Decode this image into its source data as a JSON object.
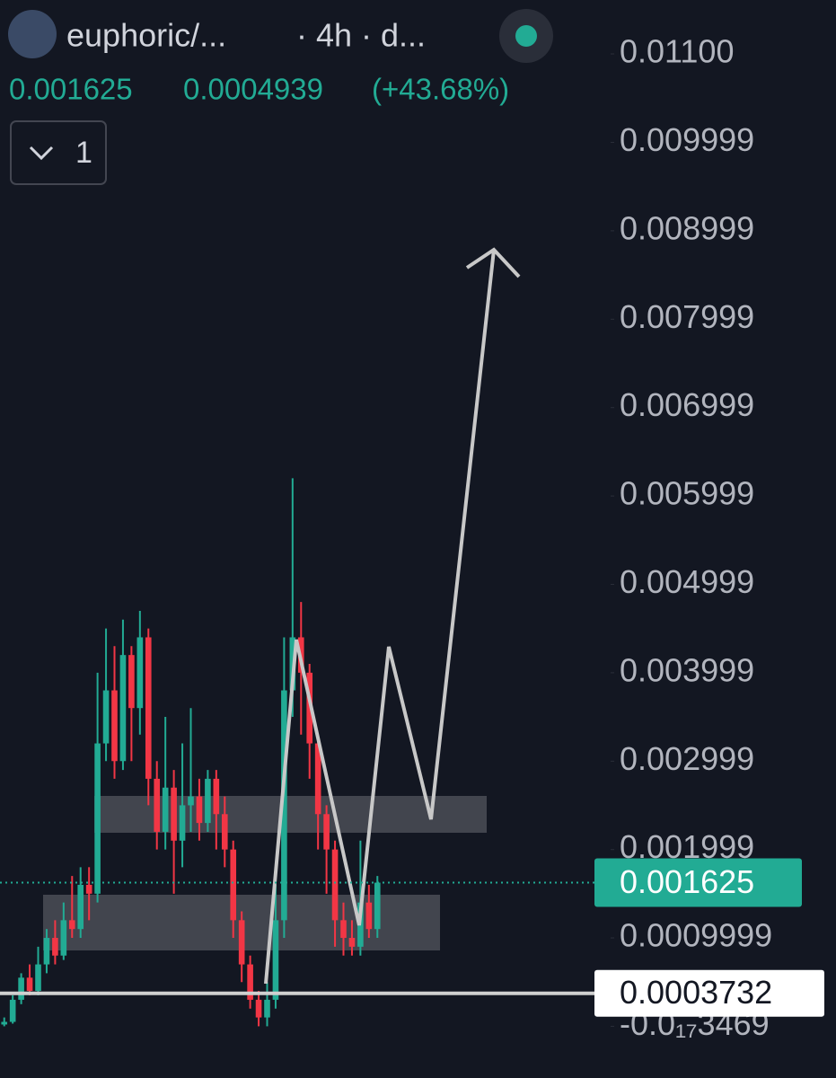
{
  "chart_data": {
    "type": "candlestick",
    "title": "euphoric/...",
    "subtitle": "· 4h · d...",
    "last_price": 0.001625,
    "change": 0.0004939,
    "change_percent": {
      "value": 43.68,
      "label": "(+43.68%)"
    },
    "legend_toggle": "1",
    "price_line": 0.0003732,
    "up_color": "#22ab94",
    "down_color": "#f23645",
    "ylim": [
      -0.000585,
      0.01161
    ],
    "yticks": [
      {
        "value": 0.011,
        "label": "0.01100"
      },
      0.009999,
      0.008999,
      0.007999,
      0.006999,
      0.005999,
      0.004999,
      0.003999,
      0.002999,
      0.001999,
      0.0009999,
      {
        "value": -3.469e-21,
        "label": "-0.0₁₇3469"
      }
    ],
    "open": [
      2e-05,
      5e-05,
      0.0003,
      0.00055,
      0.0004,
      0.0007,
      0.001,
      0.0008,
      0.0012,
      0.0011,
      0.0016,
      0.0015,
      0.0032,
      0.0038,
      0.003,
      0.0042,
      0.0036,
      0.0044,
      0.0028,
      0.0022,
      0.0027,
      0.0021,
      0.0025,
      0.0026,
      0.0023,
      0.0028,
      0.0024,
      0.002,
      0.0012,
      0.0007,
      0.0003,
      0.0001,
      0.0003,
      0.0012,
      0.0038,
      0.0044,
      0.004,
      0.0032,
      0.0024,
      0.002,
      0.0012,
      0.001,
      0.0009,
      0.0014,
      0.0011
    ],
    "high": [
      0.0001,
      0.00035,
      0.0006,
      0.0007,
      0.0009,
      0.0011,
      0.0012,
      0.0014,
      0.0017,
      0.0018,
      0.0018,
      0.004,
      0.0045,
      0.0043,
      0.0046,
      0.0043,
      0.0047,
      0.0045,
      0.003,
      0.0035,
      0.0029,
      0.0032,
      0.0036,
      0.0028,
      0.0029,
      0.0029,
      0.0026,
      0.0021,
      0.0013,
      0.0008,
      0.0004,
      0.0005,
      0.0016,
      0.0044,
      0.0062,
      0.0048,
      0.0041,
      0.0033,
      0.0025,
      0.0021,
      0.0014,
      0.0012,
      0.0021,
      0.0016,
      0.0017
    ],
    "low": [
      0.0,
      3e-05,
      0.00025,
      0.00035,
      0.00035,
      0.0006,
      0.0007,
      0.00075,
      0.001,
      0.001,
      0.0012,
      0.0014,
      0.003,
      0.0028,
      0.0029,
      0.003,
      0.0033,
      0.0025,
      0.002,
      0.002,
      0.0015,
      0.0018,
      0.0022,
      0.0021,
      0.0022,
      0.002,
      0.0018,
      0.001,
      0.0005,
      0.0002,
      0.0,
      0.0,
      0.0002,
      0.001,
      0.0035,
      0.0033,
      0.0028,
      0.002,
      0.0015,
      0.0009,
      0.0008,
      0.0008,
      0.0008,
      0.001,
      0.001
    ],
    "close": [
      5e-05,
      0.0003,
      0.00055,
      0.0004,
      0.0007,
      0.001,
      0.0008,
      0.0012,
      0.0011,
      0.0016,
      0.0015,
      0.0032,
      0.0038,
      0.003,
      0.0042,
      0.0036,
      0.0044,
      0.0028,
      0.0022,
      0.0027,
      0.0021,
      0.0025,
      0.0026,
      0.0023,
      0.0028,
      0.0024,
      0.002,
      0.0012,
      0.0007,
      0.0003,
      0.0001,
      0.0003,
      0.0012,
      0.0038,
      0.0044,
      0.004,
      0.0032,
      0.0024,
      0.002,
      0.0012,
      0.001,
      0.0009,
      0.0014,
      0.0011,
      0.001625
    ]
  }
}
